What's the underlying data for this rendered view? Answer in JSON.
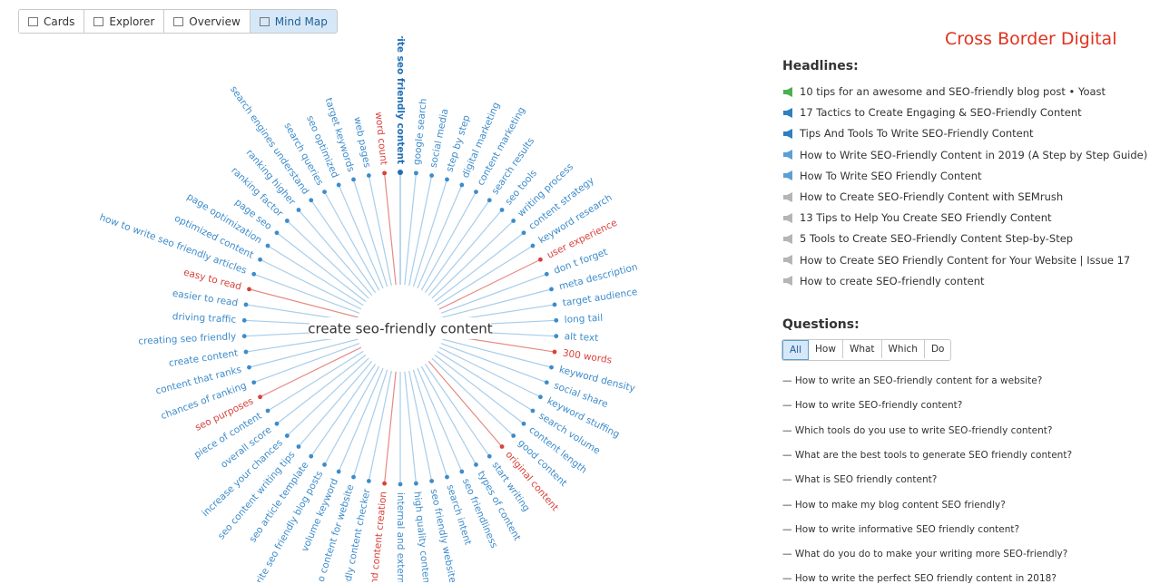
{
  "tabs": [
    {
      "label": "Cards"
    },
    {
      "label": "Explorer"
    },
    {
      "label": "Overview"
    },
    {
      "label": "Mind Map",
      "active": true
    }
  ],
  "mindmap": {
    "center": "create seo-friendly content",
    "nodes": [
      {
        "label": "write seo friendly content",
        "main": true
      },
      {
        "label": "google search"
      },
      {
        "label": "social media"
      },
      {
        "label": "step by step"
      },
      {
        "label": "digital marketing"
      },
      {
        "label": "content marketing"
      },
      {
        "label": "search results"
      },
      {
        "label": "seo tools"
      },
      {
        "label": "writing process"
      },
      {
        "label": "content strategy"
      },
      {
        "label": "keyword research"
      },
      {
        "label": "user experience",
        "red": true
      },
      {
        "label": "don t forget"
      },
      {
        "label": "meta description"
      },
      {
        "label": "target audience"
      },
      {
        "label": "long tail"
      },
      {
        "label": "alt text"
      },
      {
        "label": "300 words",
        "red": true
      },
      {
        "label": "keyword density"
      },
      {
        "label": "social share"
      },
      {
        "label": "keyword stuffing"
      },
      {
        "label": "search volume"
      },
      {
        "label": "content length"
      },
      {
        "label": "good content"
      },
      {
        "label": "original content",
        "red": true
      },
      {
        "label": "start writing"
      },
      {
        "label": "types of content"
      },
      {
        "label": "seo friendliness"
      },
      {
        "label": "search intent"
      },
      {
        "label": "seo friendly website"
      },
      {
        "label": "high quality content"
      },
      {
        "label": "internal and externa"
      },
      {
        "label": "and content creation",
        "red": true
      },
      {
        "label": "ndly content checker"
      },
      {
        "label": "o content for website"
      },
      {
        "label": "volume keyword"
      },
      {
        "label": "rite seo friendly blog posts"
      },
      {
        "label": "seo article template"
      },
      {
        "label": "seo content writing tips"
      },
      {
        "label": "increase your chances"
      },
      {
        "label": "overall score"
      },
      {
        "label": "piece of content"
      },
      {
        "label": "seo purposes",
        "red": true
      },
      {
        "label": "chances of ranking"
      },
      {
        "label": "content that ranks"
      },
      {
        "label": "create content"
      },
      {
        "label": "creating seo friendly"
      },
      {
        "label": "driving traffic"
      },
      {
        "label": "easier to read"
      },
      {
        "label": "easy to read",
        "red": true
      },
      {
        "label": "how to write seo friendly articles"
      },
      {
        "label": "optimized content"
      },
      {
        "label": "page optimization"
      },
      {
        "label": "page seo"
      },
      {
        "label": "ranking factor"
      },
      {
        "label": "ranking higher"
      },
      {
        "label": "search engines understand"
      },
      {
        "label": "search queries"
      },
      {
        "label": "seo optimized"
      },
      {
        "label": "target keywords"
      },
      {
        "label": "web pages"
      },
      {
        "label": "word count",
        "red": true
      }
    ]
  },
  "brand": "Cross Border Digital",
  "headlines": {
    "title": "Headlines:",
    "items": [
      {
        "text": "10 tips for an awesome and SEO-friendly blog post • Yoast",
        "icon": "#4caf50"
      },
      {
        "text": "17 Tactics to Create Engaging & SEO-Friendly Content",
        "icon": "#2f7fc1"
      },
      {
        "text": "Tips And Tools To Write SEO-Friendly Content",
        "icon": "#2f7fc1"
      },
      {
        "text": "How to Write SEO-Friendly Content in 2019 (A Step by Step Guide)",
        "icon": "#5b9fd4"
      },
      {
        "text": "How To Write SEO Friendly Content",
        "icon": "#5b9fd4"
      },
      {
        "text": "How to Create SEO-Friendly Content with SEMrush",
        "icon": "#b5b5b5"
      },
      {
        "text": "13 Tips to Help You Create SEO Friendly Content",
        "icon": "#b5b5b5"
      },
      {
        "text": "5 Tools to Create SEO-Friendly Content Step-by-Step",
        "icon": "#b5b5b5"
      },
      {
        "text": "How to Create SEO Friendly Content for Your Website | Issue 17",
        "icon": "#b5b5b5"
      },
      {
        "text": "How to create SEO-friendly content",
        "icon": "#b5b5b5"
      }
    ]
  },
  "questions": {
    "title": "Questions:",
    "filters": [
      {
        "label": "All",
        "active": true
      },
      {
        "label": "How"
      },
      {
        "label": "What"
      },
      {
        "label": "Which"
      },
      {
        "label": "Do"
      }
    ],
    "items": [
      "— How to write an SEO-friendly content for a website?",
      "— How to write SEO-friendly content?",
      "— Which tools do you use to write SEO-friendly content?",
      "— What are the best tools to generate SEO friendly content?",
      "— What is SEO friendly content?",
      "— How to make my blog content SEO friendly?",
      "— How to write informative SEO friendly content?",
      "— What do you do to make your writing more SEO-friendly?",
      "— How to write the perfect SEO friendly content in 2018?"
    ]
  }
}
